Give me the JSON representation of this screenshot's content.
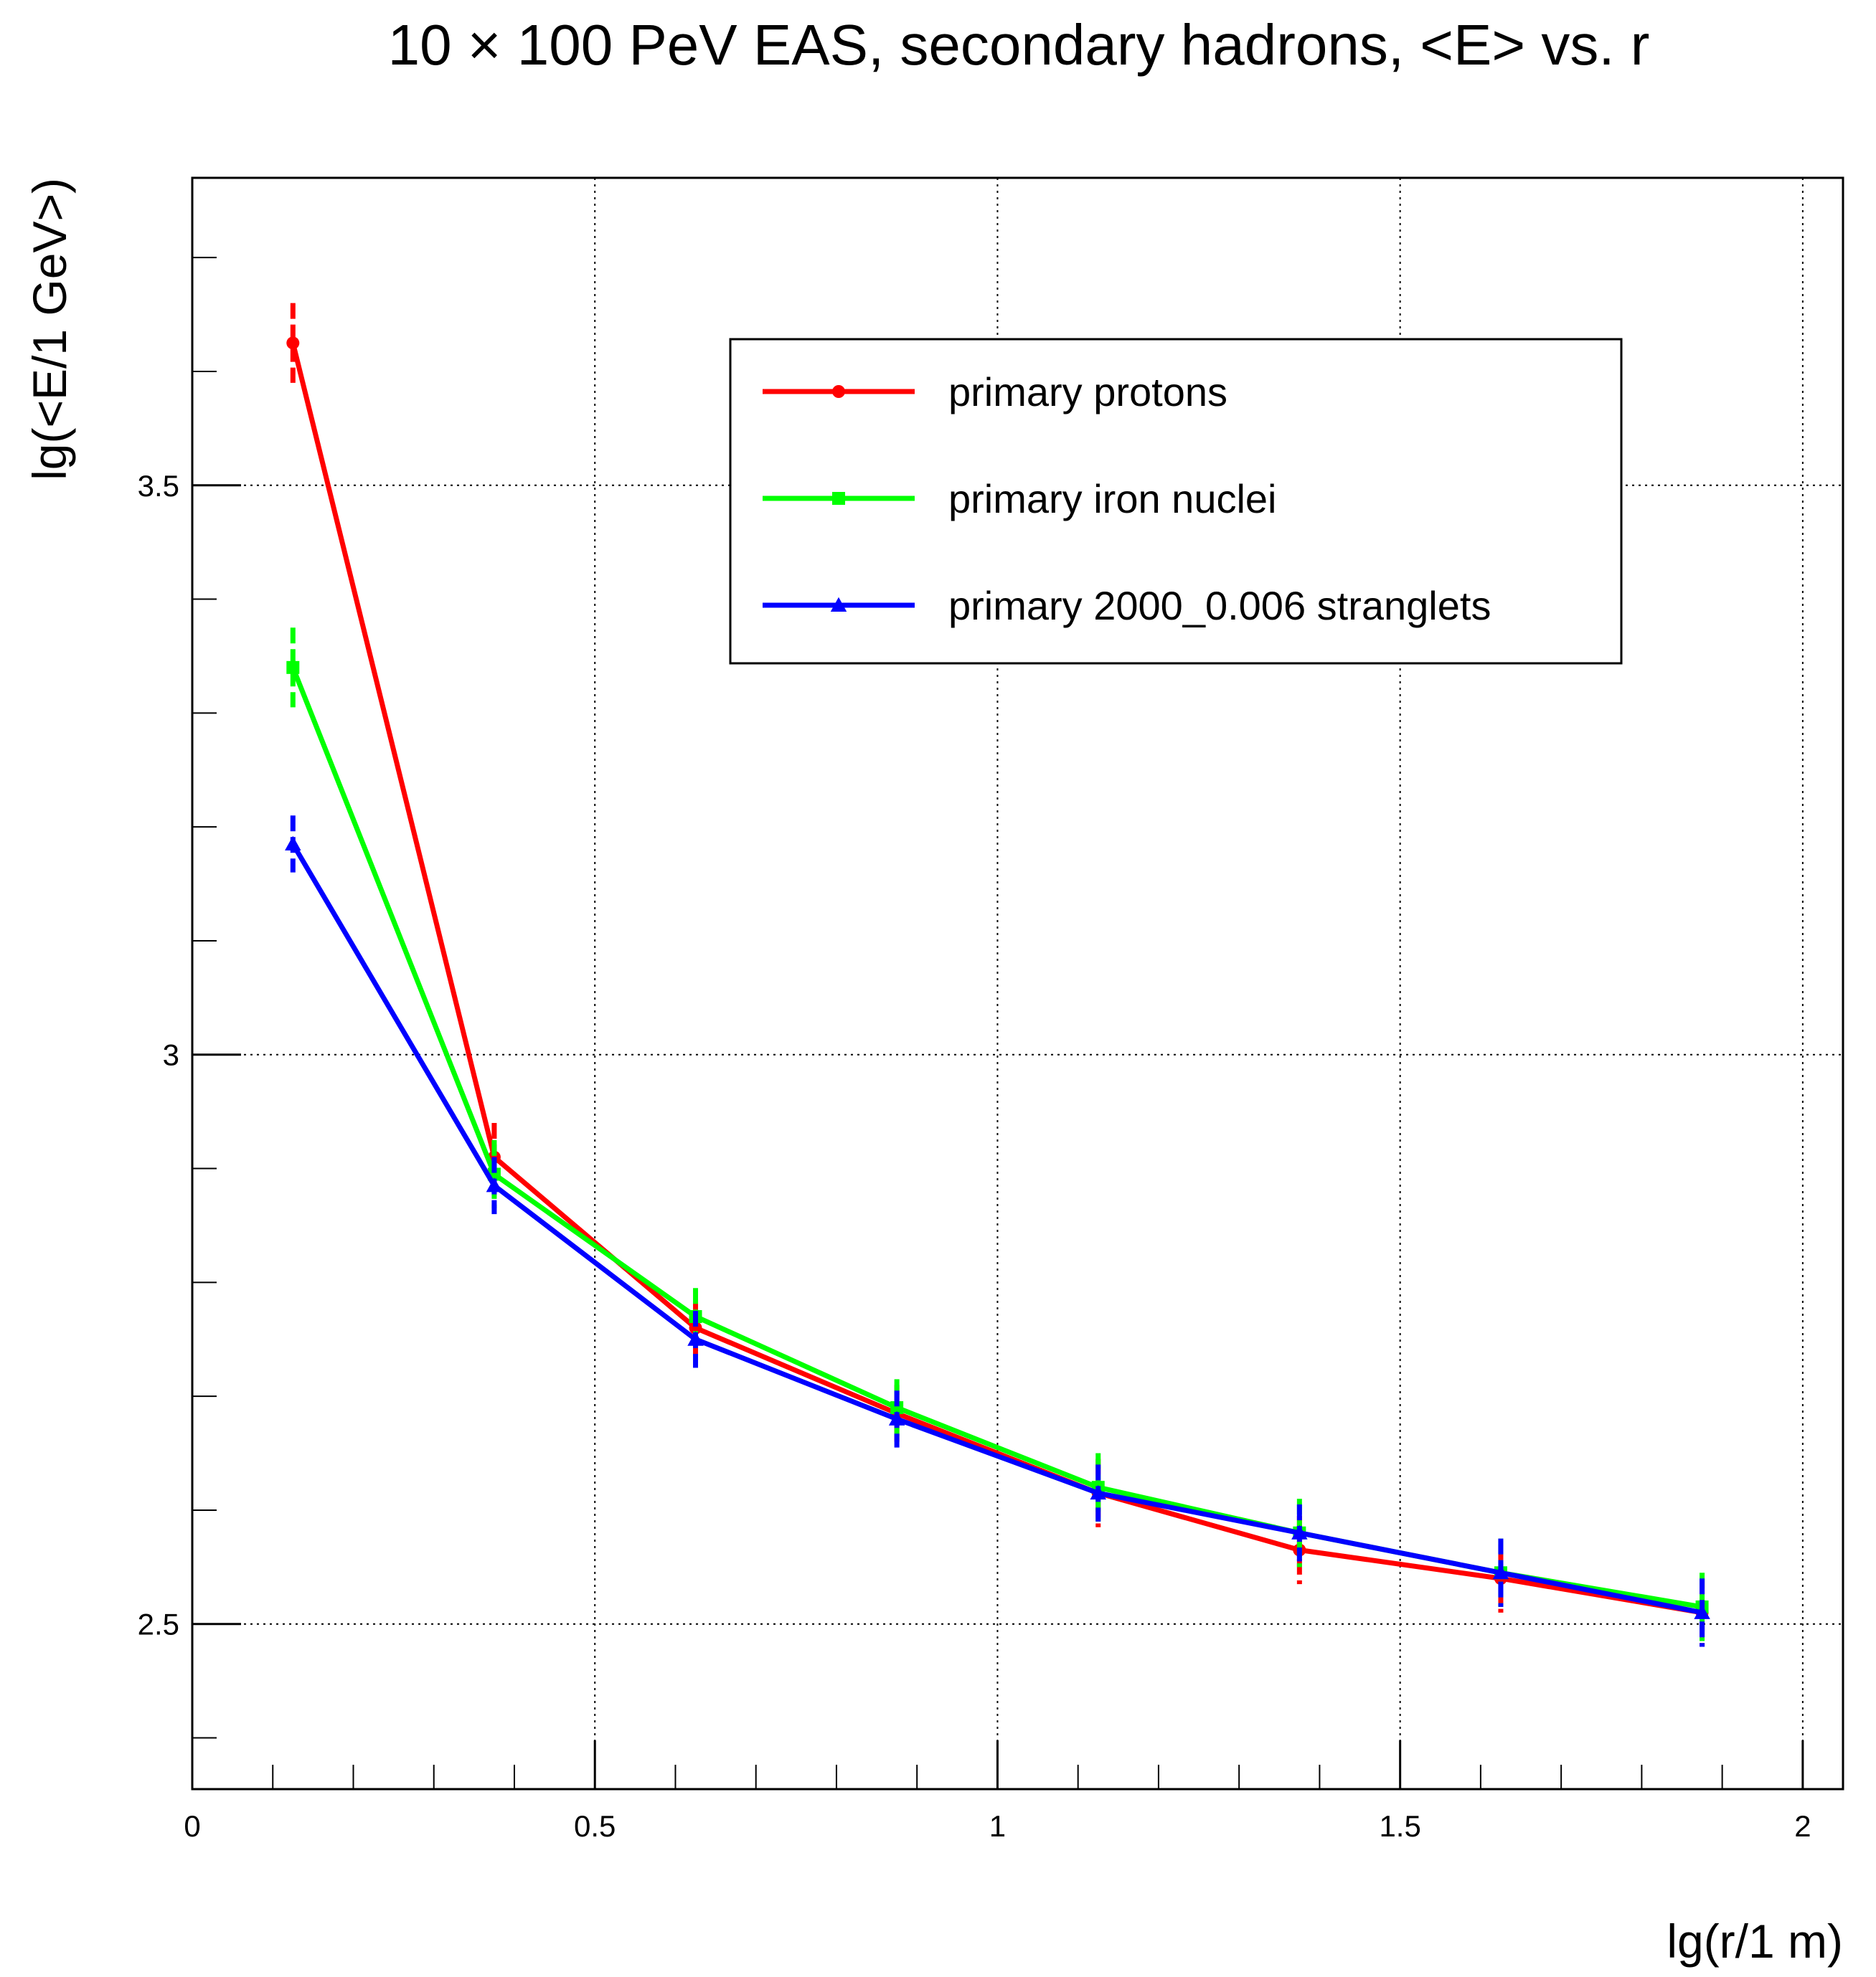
{
  "chart_data": {
    "type": "line",
    "title": "10 × 100 PeV EAS, secondary hadrons, <E> vs. r",
    "xlabel": "lg(r/1 m)",
    "ylabel": "lg(<E/1 GeV>)",
    "xlim": [
      0,
      2.05
    ],
    "ylim": [
      2.355,
      3.77
    ],
    "grid": true,
    "legend_position": "top-right",
    "x_ticks": [
      {
        "value": 0,
        "label": "0"
      },
      {
        "value": 0.5,
        "label": "0.5"
      },
      {
        "value": 1,
        "label": "1"
      },
      {
        "value": 1.5,
        "label": "1.5"
      },
      {
        "value": 2,
        "label": "2"
      }
    ],
    "y_ticks": [
      {
        "value": 2.5,
        "label": "2.5"
      },
      {
        "value": 3,
        "label": "3"
      },
      {
        "value": 3.5,
        "label": "3.5"
      }
    ],
    "x": [
      0.125,
      0.375,
      0.625,
      0.875,
      1.125,
      1.375,
      1.625,
      1.875
    ],
    "series": [
      {
        "name": "primary protons",
        "color": "#ff0000",
        "marker": "circle",
        "values": [
          3.625,
          2.91,
          2.76,
          2.685,
          2.615,
          2.565,
          2.54,
          2.51
        ],
        "errors": [
          0.035,
          0.03,
          0.025,
          0.025,
          0.03,
          0.03,
          0.03,
          0.03
        ]
      },
      {
        "name": "primary iron nuclei",
        "color": "#00ff00",
        "marker": "square",
        "values": [
          3.34,
          2.895,
          2.77,
          2.69,
          2.62,
          2.58,
          2.545,
          2.515
        ],
        "errors": [
          0.035,
          0.03,
          0.025,
          0.025,
          0.03,
          0.03,
          0.03,
          0.03
        ]
      },
      {
        "name": "primary 2000_0.006 stranglets",
        "color": "#0000ff",
        "marker": "triangle",
        "values": [
          3.185,
          2.885,
          2.75,
          2.68,
          2.615,
          2.58,
          2.545,
          2.51
        ],
        "errors": [
          0.025,
          0.025,
          0.025,
          0.025,
          0.025,
          0.025,
          0.03,
          0.03
        ]
      }
    ]
  }
}
